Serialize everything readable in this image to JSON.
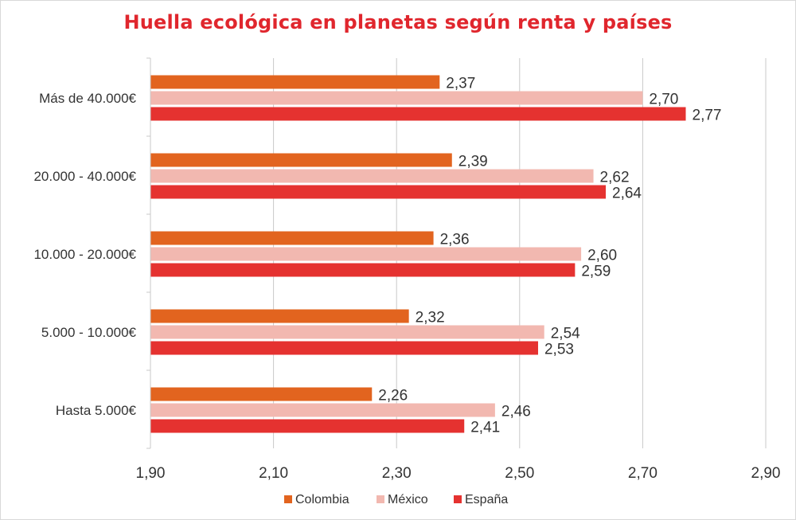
{
  "chart_data": {
    "type": "bar",
    "orientation": "horizontal",
    "title": "Huella ecológica en planetas según renta y países",
    "categories": [
      "Más de 40.000€",
      "20.000 - 40.000€",
      "10.000 - 20.000€",
      "5.000 - 10.000€",
      "Hasta 5.000€"
    ],
    "series": [
      {
        "name": "Colombia",
        "color": "#e2641f",
        "values": [
          2.37,
          2.39,
          2.36,
          2.32,
          2.26
        ],
        "labels": [
          "2,37",
          "2,39",
          "2,36",
          "2,32",
          "2,26"
        ]
      },
      {
        "name": "México",
        "color": "#f2b8b0",
        "values": [
          2.7,
          2.62,
          2.6,
          2.54,
          2.46
        ],
        "labels": [
          "2,70",
          "2,62",
          "2,60",
          "2,54",
          "2,46"
        ]
      },
      {
        "name": "España",
        "color": "#e53230",
        "values": [
          2.77,
          2.64,
          2.59,
          2.53,
          2.41
        ],
        "labels": [
          "2,77",
          "2,64",
          "2,59",
          "2,53",
          "2,41"
        ]
      }
    ],
    "xlim": [
      1.9,
      2.9
    ],
    "xticks": [
      1.9,
      2.1,
      2.3,
      2.5,
      2.7,
      2.9
    ],
    "xtick_labels": [
      "1,90",
      "2,10",
      "2,30",
      "2,50",
      "2,70",
      "2,90"
    ],
    "grid": "vertical",
    "legend": "bottom"
  }
}
